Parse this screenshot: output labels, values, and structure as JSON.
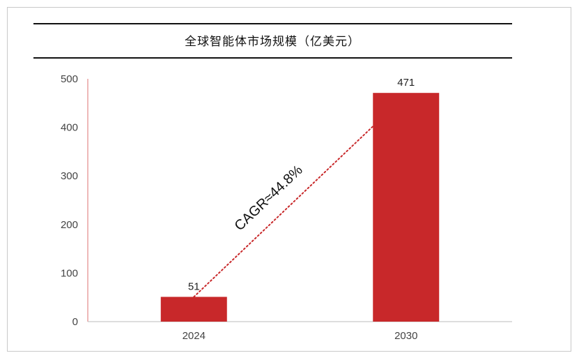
{
  "chart_data": {
    "type": "bar",
    "title": "全球智能体市场规模（亿美元）",
    "categories": [
      "2024",
      "2030"
    ],
    "values": [
      51,
      471
    ],
    "data_labels": [
      "51",
      "471"
    ],
    "ylim": [
      0,
      500
    ],
    "yticks": [
      0,
      100,
      200,
      300,
      400,
      500
    ],
    "ytick_labels": [
      "0",
      "100",
      "200",
      "300",
      "400",
      "500"
    ],
    "grid": false,
    "bar_color": "#C8282A",
    "annotation": {
      "text": "CAGR≈44.8%",
      "line_style": "dotted",
      "color": "#C8282A"
    }
  }
}
